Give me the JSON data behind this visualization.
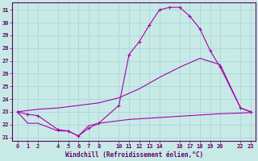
{
  "xlabel": "Windchill (Refroidissement éolien,°C)",
  "background_color": "#c8eae6",
  "grid_color": "#a8d8d4",
  "line_color": "#aa00aa",
  "xlim": [
    -0.5,
    23.5
  ],
  "ylim": [
    20.7,
    31.6
  ],
  "yticks": [
    21,
    22,
    23,
    24,
    25,
    26,
    27,
    28,
    29,
    30,
    31
  ],
  "xticks": [
    0,
    1,
    2,
    4,
    5,
    6,
    7,
    8,
    10,
    11,
    12,
    13,
    14,
    16,
    17,
    18,
    19,
    20,
    22,
    23
  ],
  "line1_x": [
    0,
    1,
    2,
    4,
    5,
    6,
    7,
    8,
    10,
    11,
    12,
    13,
    14,
    15,
    16,
    17,
    18,
    19,
    20,
    22,
    23
  ],
  "line1_y": [
    23.0,
    22.8,
    22.7,
    21.6,
    21.5,
    21.1,
    21.7,
    22.1,
    23.5,
    27.5,
    28.5,
    29.8,
    31.0,
    31.2,
    31.2,
    30.5,
    29.5,
    27.8,
    26.5,
    23.3,
    23.0
  ],
  "line2_x": [
    0,
    1,
    2,
    4,
    5,
    6,
    7,
    8,
    10,
    11,
    12,
    13,
    14,
    15,
    16,
    17,
    18,
    19,
    20,
    22,
    23
  ],
  "line2_y": [
    23.0,
    22.1,
    22.1,
    21.5,
    21.5,
    21.1,
    21.9,
    22.1,
    22.3,
    22.4,
    22.45,
    22.5,
    22.55,
    22.6,
    22.65,
    22.7,
    22.75,
    22.8,
    22.85,
    22.9,
    22.95
  ],
  "line3_x": [
    0,
    2,
    4,
    8,
    10,
    12,
    14,
    16,
    18,
    20,
    22,
    23
  ],
  "line3_y": [
    23.0,
    23.2,
    23.3,
    23.7,
    24.1,
    24.8,
    25.7,
    26.5,
    27.2,
    26.7,
    23.3,
    23.0
  ]
}
